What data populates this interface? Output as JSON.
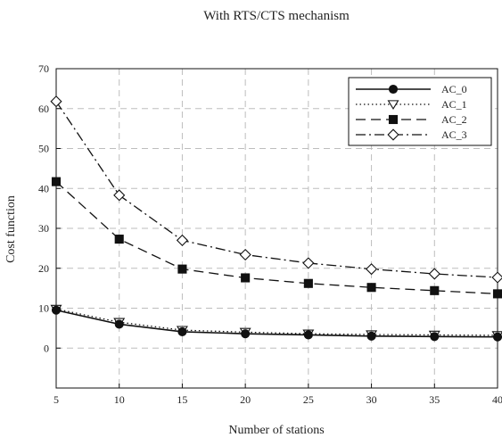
{
  "chart_data": {
    "type": "line",
    "title": "With RTS/CTS mechanism",
    "xlabel": "Number of stations",
    "ylabel": "Cost function",
    "x": [
      5,
      10,
      15,
      20,
      25,
      30,
      35,
      40
    ],
    "xlim": [
      5,
      40
    ],
    "ylim": [
      -10,
      70
    ],
    "x_ticks": [
      5,
      10,
      15,
      20,
      25,
      30,
      35,
      40
    ],
    "y_ticks": [
      0,
      10,
      20,
      30,
      40,
      50,
      60,
      70
    ],
    "grid": true,
    "legend_position": "top-right",
    "series": [
      {
        "name": "AC_0",
        "values": [
          9.5,
          6.0,
          4.1,
          3.6,
          3.3,
          3.0,
          2.9,
          2.8
        ],
        "marker": "circle",
        "line_style": "solid"
      },
      {
        "name": "AC_1",
        "values": [
          9.8,
          6.5,
          4.5,
          4.0,
          3.6,
          3.4,
          3.3,
          3.2
        ],
        "marker": "triangle-down",
        "line_style": "dotted"
      },
      {
        "name": "AC_2",
        "values": [
          41.7,
          27.3,
          19.8,
          17.6,
          16.2,
          15.2,
          14.4,
          13.6
        ],
        "marker": "square",
        "line_style": "dashed"
      },
      {
        "name": "AC_3",
        "values": [
          61.8,
          38.3,
          27.0,
          23.4,
          21.3,
          19.8,
          18.6,
          17.7
        ],
        "marker": "diamond",
        "line_style": "dash-dot"
      }
    ]
  }
}
